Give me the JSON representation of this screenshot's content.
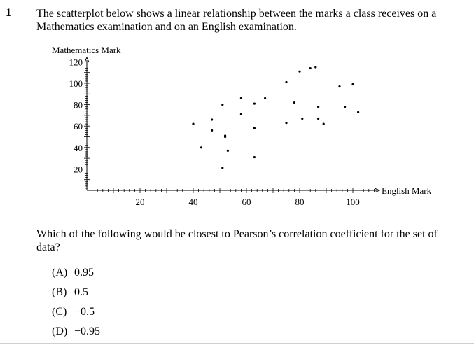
{
  "question": {
    "number": "1",
    "stem_line1": "The scatterplot below shows a linear relationship between the marks a class receives on a",
    "stem_line2": "Mathematics examination and on an English examination.",
    "prompt": "Which of the following would be closest to Pearson’s correlation coefficient for the set of data?",
    "options": [
      {
        "letter": "(A)",
        "value": "0.95"
      },
      {
        "letter": "(B)",
        "value": "0.5"
      },
      {
        "letter": "(C)",
        "value": "−0.5"
      },
      {
        "letter": "(D)",
        "value": "−0.95"
      }
    ]
  },
  "chart_data": {
    "type": "scatter",
    "title": "",
    "xlabel": "English Mark",
    "ylabel": "Mathematics Mark",
    "xlim": [
      0,
      110
    ],
    "ylim": [
      0,
      120
    ],
    "x_ticks": [
      20,
      40,
      60,
      80,
      100
    ],
    "y_ticks": [
      20,
      40,
      60,
      80,
      100,
      120
    ],
    "points": [
      {
        "x": 40,
        "y": 62
      },
      {
        "x": 43,
        "y": 40
      },
      {
        "x": 47,
        "y": 56
      },
      {
        "x": 47,
        "y": 66
      },
      {
        "x": 51,
        "y": 21
      },
      {
        "x": 51,
        "y": 80
      },
      {
        "x": 52,
        "y": 51
      },
      {
        "x": 52,
        "y": 50
      },
      {
        "x": 53,
        "y": 37
      },
      {
        "x": 58,
        "y": 71
      },
      {
        "x": 58,
        "y": 86
      },
      {
        "x": 63,
        "y": 58
      },
      {
        "x": 63,
        "y": 31
      },
      {
        "x": 63,
        "y": 81
      },
      {
        "x": 67,
        "y": 86
      },
      {
        "x": 75,
        "y": 63
      },
      {
        "x": 75,
        "y": 101
      },
      {
        "x": 78,
        "y": 82
      },
      {
        "x": 80,
        "y": 111
      },
      {
        "x": 81,
        "y": 67
      },
      {
        "x": 84,
        "y": 114
      },
      {
        "x": 86,
        "y": 115
      },
      {
        "x": 87,
        "y": 78
      },
      {
        "x": 87,
        "y": 67
      },
      {
        "x": 89,
        "y": 62
      },
      {
        "x": 95,
        "y": 97
      },
      {
        "x": 97,
        "y": 78
      },
      {
        "x": 100,
        "y": 99
      },
      {
        "x": 102,
        "y": 73
      }
    ],
    "grid": false,
    "legend": "none"
  }
}
